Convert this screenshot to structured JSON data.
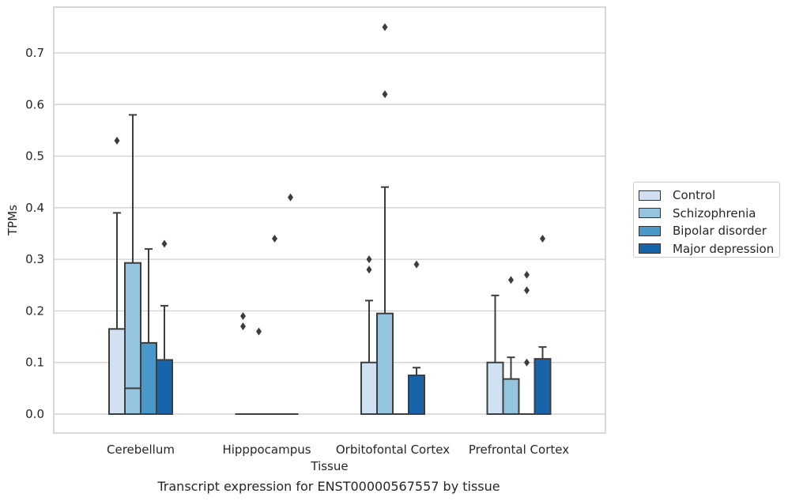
{
  "caption": "Transcript expression for ENST00000567557 by tissue",
  "chart_data": {
    "type": "box",
    "xlabel": "Tissue",
    "ylabel": "TPMs",
    "ylim": [
      -0.037,
      0.78
    ],
    "yticks": [
      0.0,
      0.1,
      0.2,
      0.3,
      0.4,
      0.5,
      0.6,
      0.7
    ],
    "ytick_labels": [
      "0.0",
      "0.1",
      "0.2",
      "0.3",
      "0.4",
      "0.5",
      "0.6",
      "0.7"
    ],
    "grid": true,
    "legend_position": "right",
    "categories": [
      "Cerebellum",
      "Hipppocampus",
      "Orbitofontal Cortex",
      "Prefrontal Cortex"
    ],
    "series": [
      {
        "name": "Control",
        "color": "#d0e1f2",
        "boxes": [
          {
            "q1": 0.0,
            "median": 0.0,
            "q3": 0.165,
            "whisker_low": 0.0,
            "whisker_high": 0.39,
            "outliers": [
              0.53
            ]
          },
          {
            "q1": 0.0,
            "median": 0.0,
            "q3": 0.0,
            "whisker_low": 0.0,
            "whisker_high": 0.0,
            "outliers": [
              0.17,
              0.19
            ]
          },
          {
            "q1": 0.0,
            "median": 0.0,
            "q3": 0.1,
            "whisker_low": 0.0,
            "whisker_high": 0.22,
            "outliers": [
              0.28,
              0.3
            ]
          },
          {
            "q1": 0.0,
            "median": 0.0,
            "q3": 0.1,
            "whisker_low": 0.0,
            "whisker_high": 0.23,
            "outliers": []
          }
        ]
      },
      {
        "name": "Schizophrenia",
        "color": "#94c4df",
        "boxes": [
          {
            "q1": 0.0,
            "median": 0.05,
            "q3": 0.293,
            "whisker_low": 0.0,
            "whisker_high": 0.58,
            "outliers": []
          },
          {
            "q1": 0.0,
            "median": 0.0,
            "q3": 0.0,
            "whisker_low": 0.0,
            "whisker_high": 0.0,
            "outliers": [
              0.16
            ]
          },
          {
            "q1": 0.0,
            "median": 0.0,
            "q3": 0.195,
            "whisker_low": 0.0,
            "whisker_high": 0.44,
            "outliers": [
              0.62,
              0.75
            ]
          },
          {
            "q1": 0.0,
            "median": 0.0,
            "q3": 0.068,
            "whisker_low": 0.0,
            "whisker_high": 0.11,
            "outliers": [
              0.26
            ]
          }
        ]
      },
      {
        "name": "Bipolar disorder",
        "color": "#4a98c9",
        "boxes": [
          {
            "q1": 0.0,
            "median": 0.0,
            "q3": 0.138,
            "whisker_low": 0.0,
            "whisker_high": 0.32,
            "outliers": []
          },
          {
            "q1": 0.0,
            "median": 0.0,
            "q3": 0.0,
            "whisker_low": 0.0,
            "whisker_high": 0.0,
            "outliers": [
              0.34
            ]
          },
          {
            "q1": 0.0,
            "median": 0.0,
            "q3": 0.0,
            "whisker_low": 0.0,
            "whisker_high": 0.0,
            "outliers": []
          },
          {
            "q1": 0.0,
            "median": 0.0,
            "q3": 0.0,
            "whisker_low": 0.0,
            "whisker_high": 0.0,
            "outliers": [
              0.1,
              0.24,
              0.27
            ]
          }
        ]
      },
      {
        "name": "Major depression",
        "color": "#1764ab",
        "boxes": [
          {
            "q1": 0.0,
            "median": 0.0,
            "q3": 0.105,
            "whisker_low": 0.0,
            "whisker_high": 0.21,
            "outliers": [
              0.33
            ]
          },
          {
            "q1": 0.0,
            "median": 0.0,
            "q3": 0.0,
            "whisker_low": 0.0,
            "whisker_high": 0.0,
            "outliers": [
              0.42
            ]
          },
          {
            "q1": 0.0,
            "median": 0.0,
            "q3": 0.075,
            "whisker_low": 0.0,
            "whisker_high": 0.09,
            "outliers": [
              0.29
            ]
          },
          {
            "q1": 0.0,
            "median": 0.0,
            "q3": 0.107,
            "whisker_low": 0.0,
            "whisker_high": 0.13,
            "outliers": [
              0.34
            ]
          }
        ]
      }
    ]
  }
}
